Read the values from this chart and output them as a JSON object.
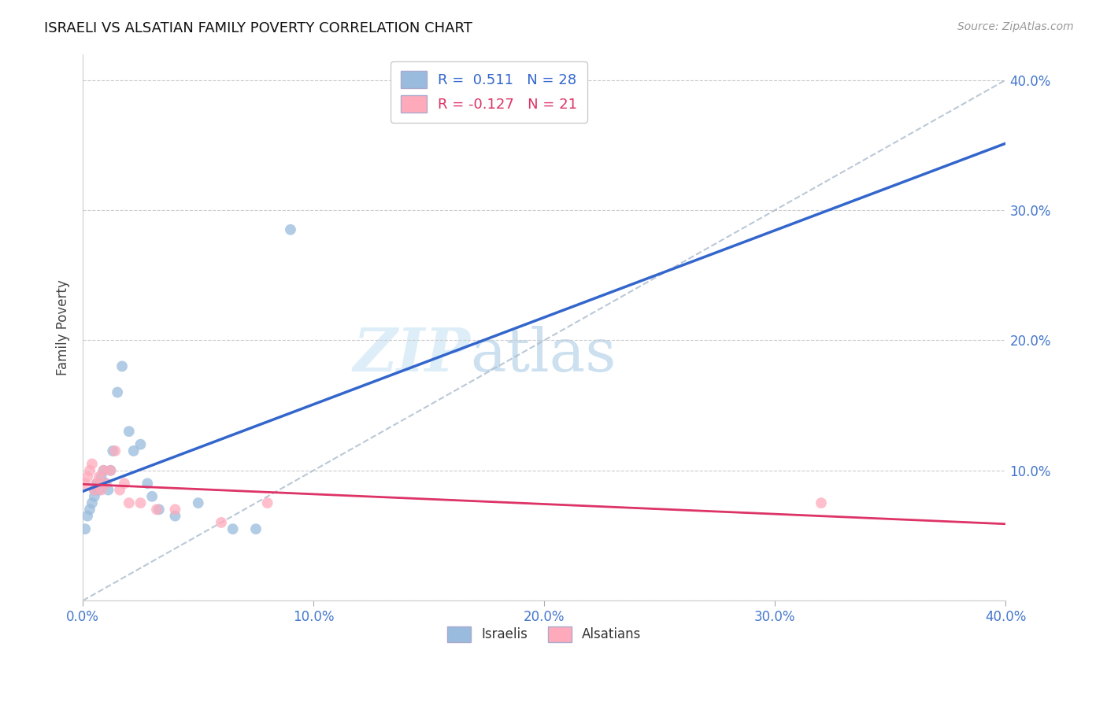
{
  "title": "ISRAELI VS ALSATIAN FAMILY POVERTY CORRELATION CHART",
  "source": "Source: ZipAtlas.com",
  "ylabel": "Family Poverty",
  "xlim": [
    0.0,
    0.4
  ],
  "ylim": [
    0.0,
    0.42
  ],
  "ytick_values": [
    0.0,
    0.1,
    0.2,
    0.3,
    0.4
  ],
  "xtick_values": [
    0.0,
    0.1,
    0.2,
    0.3,
    0.4
  ],
  "israeli_color": "#99bbdd",
  "alsatian_color": "#ffaabb",
  "trend_israeli_color": "#3366cc",
  "trend_alsatian_color": "#dd3366",
  "watermark_zip": "ZIP",
  "watermark_atlas": "atlas",
  "dot_size": 100,
  "background_color": "#ffffff",
  "grid_color": "#cccccc",
  "israeli_x": [
    0.001,
    0.002,
    0.003,
    0.004,
    0.005,
    0.005,
    0.006,
    0.007,
    0.007,
    0.008,
    0.009,
    0.01,
    0.011,
    0.012,
    0.013,
    0.015,
    0.017,
    0.02,
    0.022,
    0.025,
    0.028,
    0.03,
    0.033,
    0.04,
    0.05,
    0.065,
    0.075,
    0.09
  ],
  "israeli_y": [
    0.055,
    0.065,
    0.07,
    0.075,
    0.08,
    0.085,
    0.09,
    0.085,
    0.09,
    0.095,
    0.1,
    0.09,
    0.085,
    0.1,
    0.115,
    0.16,
    0.18,
    0.13,
    0.115,
    0.12,
    0.09,
    0.08,
    0.07,
    0.065,
    0.075,
    0.055,
    0.055,
    0.285
  ],
  "alsatian_x": [
    0.001,
    0.002,
    0.003,
    0.004,
    0.005,
    0.006,
    0.007,
    0.008,
    0.009,
    0.01,
    0.012,
    0.014,
    0.016,
    0.018,
    0.02,
    0.025,
    0.032,
    0.04,
    0.06,
    0.08,
    0.32
  ],
  "alsatian_y": [
    0.09,
    0.095,
    0.1,
    0.105,
    0.085,
    0.09,
    0.095,
    0.085,
    0.1,
    0.09,
    0.1,
    0.115,
    0.085,
    0.09,
    0.075,
    0.075,
    0.07,
    0.07,
    0.06,
    0.075,
    0.075
  ],
  "legend_r_isr": "R =  0.511   N = 28",
  "legend_r_als": "R = -0.127   N = 21",
  "legend_label_isr": "Israelis",
  "legend_label_als": "Alsatians"
}
